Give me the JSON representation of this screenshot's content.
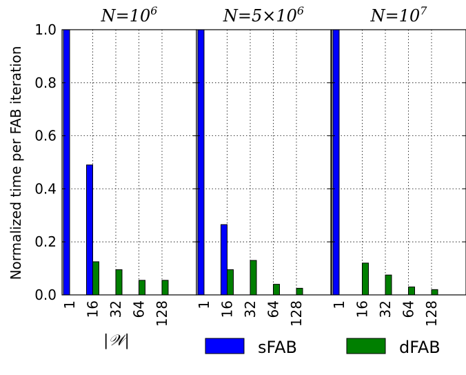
{
  "chart_data": {
    "type": "bar",
    "ylabel": "Normalized time per FAB iteration",
    "xlabel": "|𝒲|",
    "ylim": [
      0,
      1.0
    ],
    "yticks": [
      "0.0",
      "0.2",
      "0.4",
      "0.6",
      "0.8",
      "1.0"
    ],
    "categories": [
      "1",
      "16",
      "32",
      "64",
      "128"
    ],
    "grid": true,
    "legend_position": "bottom-right",
    "panels": [
      {
        "title": "N = 10^6",
        "series": [
          {
            "name": "sFAB",
            "color": "#0000ff",
            "values": [
              1.0,
              0.49,
              null,
              null,
              null
            ]
          },
          {
            "name": "dFAB",
            "color": "#007f00",
            "values": [
              null,
              0.125,
              0.095,
              0.055,
              0.055
            ]
          }
        ]
      },
      {
        "title": "N = 5 × 10^6",
        "series": [
          {
            "name": "sFAB",
            "color": "#0000ff",
            "values": [
              1.0,
              0.265,
              null,
              null,
              null
            ]
          },
          {
            "name": "dFAB",
            "color": "#007f00",
            "values": [
              null,
              0.095,
              0.13,
              0.04,
              0.025
            ]
          }
        ]
      },
      {
        "title": "N = 10^7",
        "series": [
          {
            "name": "sFAB",
            "color": "#0000ff",
            "values": [
              1.0,
              null,
              null,
              null,
              null
            ]
          },
          {
            "name": "dFAB",
            "color": "#007f00",
            "values": [
              null,
              0.12,
              0.075,
              0.03,
              0.02
            ]
          }
        ]
      }
    ],
    "legend": [
      {
        "name": "sFAB",
        "color": "#0000ff"
      },
      {
        "name": "dFAB",
        "color": "#007f00"
      }
    ]
  }
}
